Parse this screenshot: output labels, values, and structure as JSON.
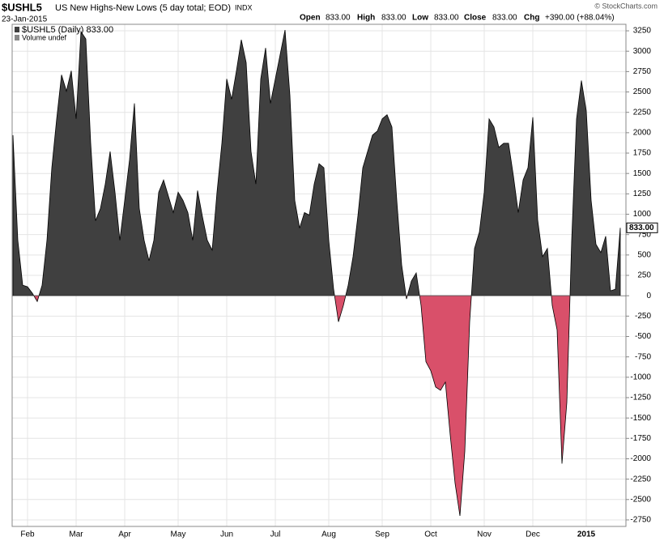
{
  "header": {
    "symbol": "$USHL5",
    "name": "US New Highs-New Lows (5 day total; EOD)",
    "exchange": "INDX",
    "date": "23-Jan-2015",
    "open_label": "Open",
    "open": "833.00",
    "high_label": "High",
    "high": "833.00",
    "low_label": "Low",
    "low": "833.00",
    "close_label": "Close",
    "close": "833.00",
    "chg_label": "Chg",
    "chg": "+390.00 (+88.04%)",
    "credit": "© StockCharts.com"
  },
  "chart_data": {
    "type": "area",
    "legend": [
      "$USHL5 (Daily) 833.00",
      "Volume undef"
    ],
    "categories": [
      null,
      null,
      null,
      "Feb",
      null,
      null,
      null,
      null,
      null,
      null,
      null,
      null,
      null,
      "Mar",
      null,
      null,
      null,
      null,
      null,
      null,
      null,
      null,
      null,
      "Apr",
      null,
      null,
      null,
      null,
      null,
      null,
      null,
      null,
      null,
      null,
      "May",
      null,
      null,
      null,
      null,
      null,
      null,
      null,
      null,
      null,
      "Jun",
      null,
      null,
      null,
      null,
      null,
      null,
      null,
      null,
      null,
      "Jul",
      null,
      null,
      null,
      null,
      null,
      null,
      null,
      null,
      null,
      null,
      "Aug",
      null,
      null,
      null,
      null,
      null,
      null,
      null,
      null,
      null,
      null,
      "Sep",
      null,
      null,
      null,
      null,
      null,
      null,
      null,
      null,
      null,
      "Oct",
      null,
      null,
      null,
      null,
      null,
      null,
      null,
      null,
      null,
      null,
      "Nov",
      null,
      null,
      null,
      null,
      null,
      null,
      null,
      null,
      null,
      "Dec",
      null,
      null,
      null,
      null,
      null,
      null,
      null,
      null,
      null,
      null,
      "2015",
      null,
      null,
      null,
      null,
      null,
      null,
      null
    ],
    "series": [
      {
        "name": "$USHL5",
        "color": "#404040",
        "negative_color": "#d9506a",
        "values": [
          1970,
          680,
          130,
          110,
          30,
          -70,
          130,
          680,
          1570,
          2170,
          2710,
          2510,
          2760,
          2170,
          3240,
          3150,
          1870,
          920,
          1070,
          1370,
          1770,
          1270,
          680,
          1170,
          1670,
          2360,
          1070,
          680,
          430,
          680,
          1270,
          1420,
          1220,
          1020,
          1270,
          1170,
          1020,
          680,
          1290,
          970,
          680,
          560,
          1270,
          1870,
          2660,
          2410,
          2760,
          3140,
          2860,
          1770,
          1370,
          2660,
          3040,
          2360,
          2660,
          2960,
          3260,
          2460,
          1170,
          830,
          1020,
          990,
          1370,
          1620,
          1570,
          680,
          80,
          -320,
          -120,
          130,
          480,
          980,
          1570,
          1770,
          1970,
          2020,
          2170,
          2220,
          2070,
          1170,
          380,
          -40,
          180,
          280,
          -120,
          -810,
          -920,
          -1120,
          -1160,
          -1060,
          -1710,
          -2300,
          -2700,
          -1910,
          -320,
          580,
          780,
          1270,
          2170,
          2070,
          1820,
          1870,
          1870,
          1470,
          1020,
          1420,
          1570,
          2190,
          930,
          480,
          580,
          -120,
          -420,
          -2060,
          -1310,
          680,
          2170,
          2640,
          2270,
          1170,
          630,
          530,
          730,
          60,
          80,
          833
        ]
      }
    ],
    "last_value_label": "833.00",
    "ylim": [
      -2830,
      3330
    ],
    "yticks": [
      -2750,
      -2500,
      -2250,
      -2000,
      -1750,
      -1500,
      -1250,
      -1000,
      -750,
      -500,
      -250,
      0,
      250,
      500,
      750,
      1000,
      1250,
      1500,
      1750,
      2000,
      2250,
      2500,
      2750,
      3000,
      3250
    ],
    "grid": true
  }
}
